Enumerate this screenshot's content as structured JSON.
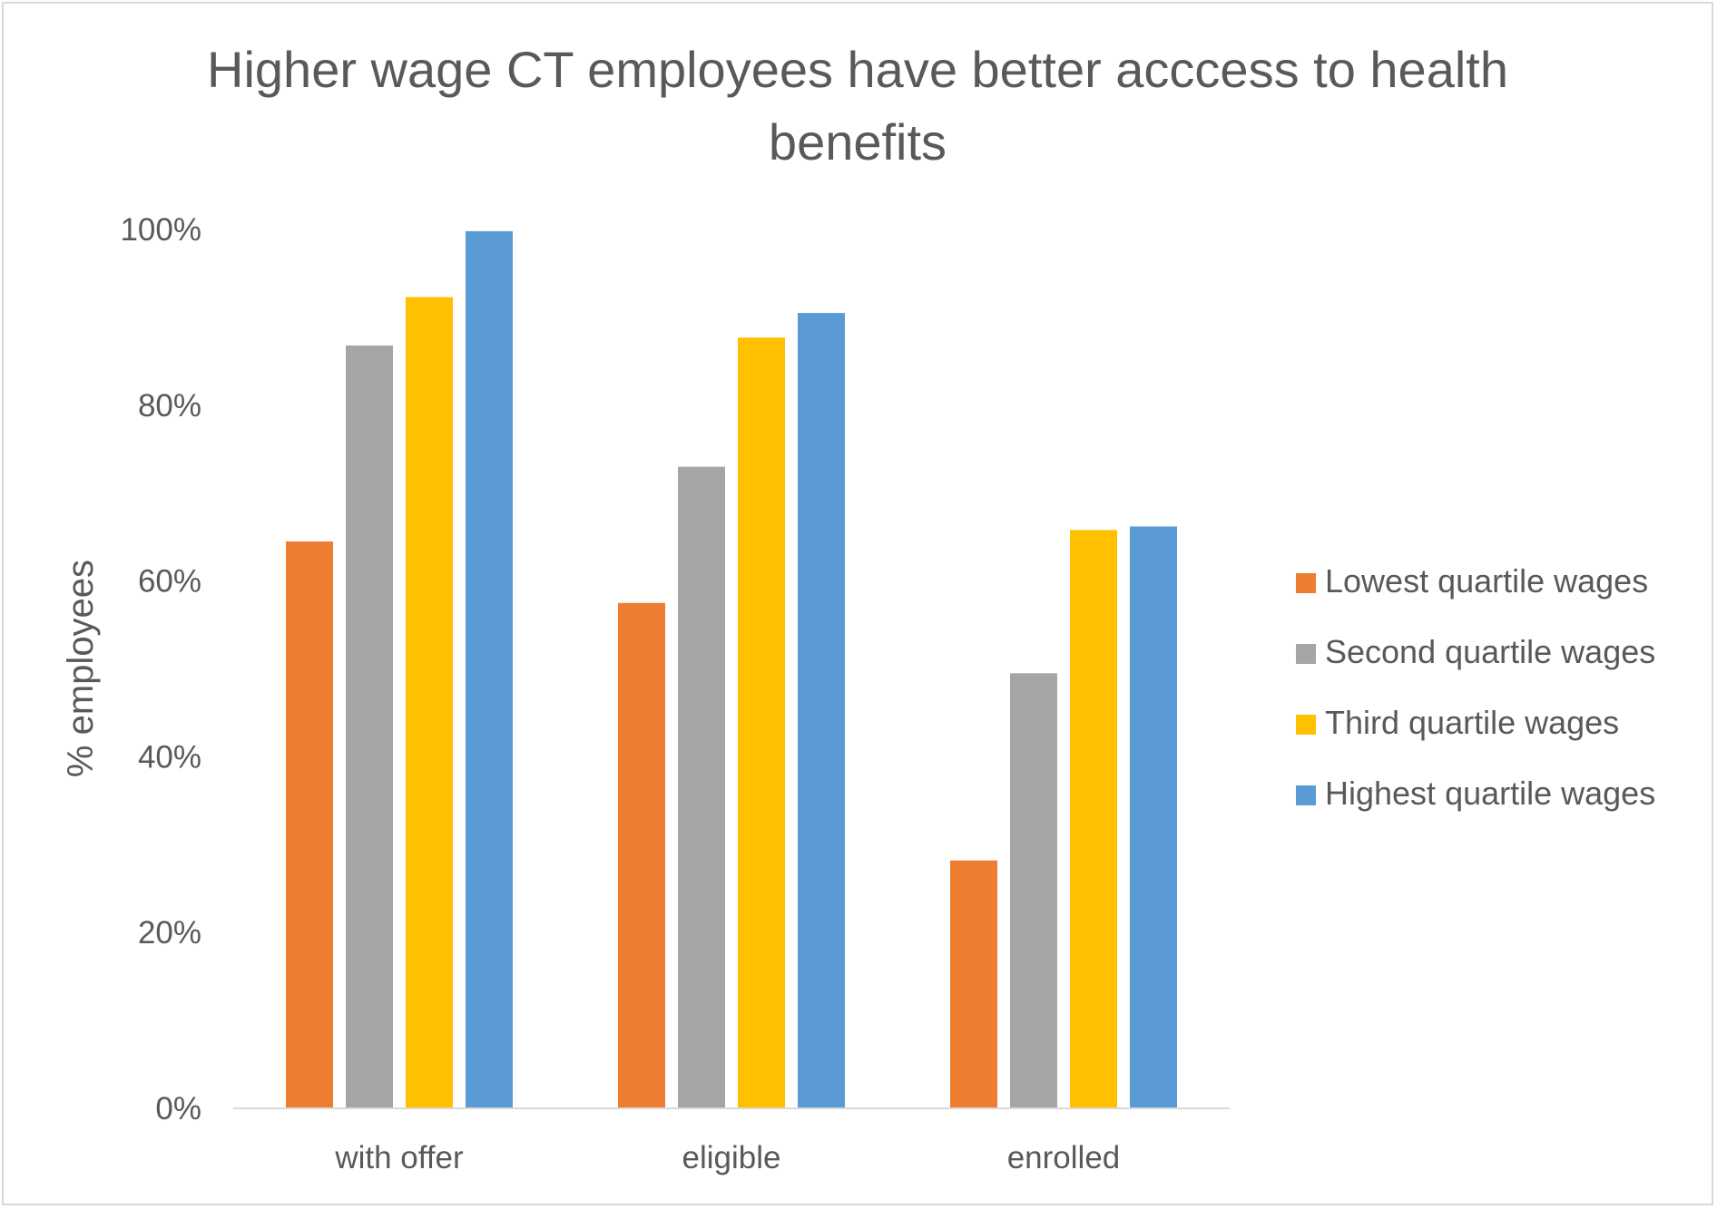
{
  "chart_data": {
    "type": "bar",
    "title_lines": [
      "Higher wage CT employees have better acccess to health",
      "benefits"
    ],
    "xlabel": "",
    "ylabel": "% employees",
    "ylim": [
      0,
      100
    ],
    "yticks": [
      0,
      20,
      40,
      60,
      80,
      100
    ],
    "ytick_labels": [
      "0%",
      "20%",
      "40%",
      "60%",
      "80%",
      "100%"
    ],
    "grid": false,
    "legend_position": "right",
    "categories": [
      "with offer",
      "eligible",
      "enrolled"
    ],
    "series": [
      {
        "name": "Lowest quartile wages",
        "color": "#ED7D31",
        "values": [
          64.5,
          57.5,
          28.2
        ]
      },
      {
        "name": "Second quartile wages",
        "color": "#A5A5A5",
        "values": [
          86.8,
          73.0,
          49.5
        ]
      },
      {
        "name": "Third quartile wages",
        "color": "#FFC000",
        "values": [
          92.3,
          87.7,
          65.8
        ]
      },
      {
        "name": "Highest quartile wages",
        "color": "#5B9BD5",
        "values": [
          99.8,
          90.5,
          66.2
        ]
      }
    ],
    "axis_color": "#d9d9d9"
  }
}
